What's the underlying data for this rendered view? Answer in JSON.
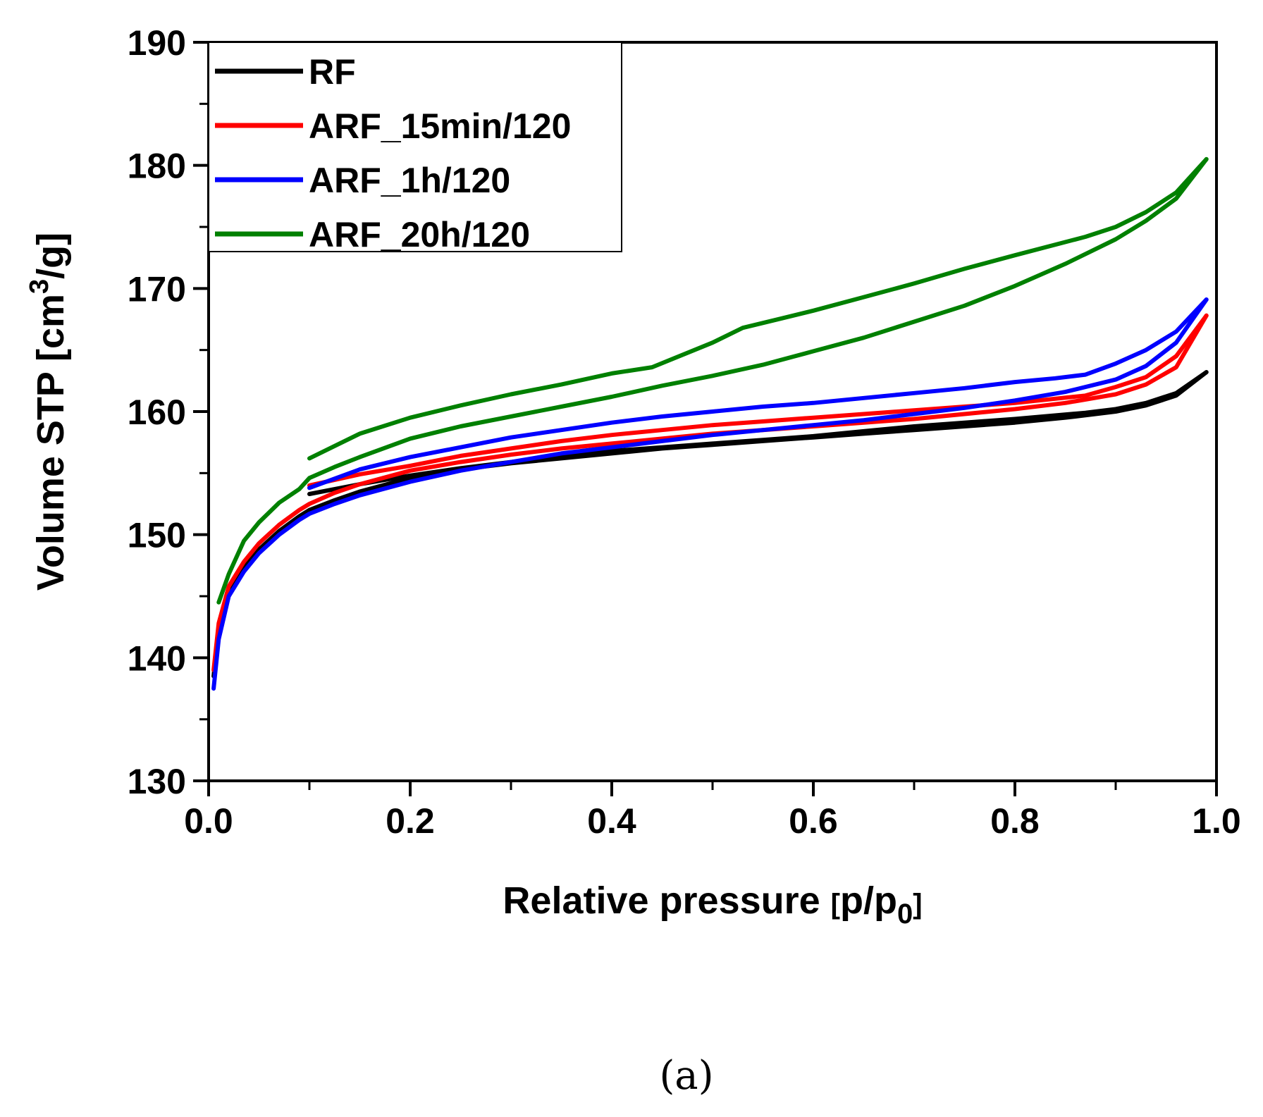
{
  "caption": "(a)",
  "chart_data": {
    "type": "line",
    "xlabel": "Relative pressure [p/p0]",
    "xlabel_parts": {
      "main": "Relative pressure ",
      "bracket_open": "[",
      "p": "p/p",
      "sub": "0",
      "bracket_close": "]"
    },
    "ylabel": "Volume STP [cm3/g]",
    "ylabel_parts": {
      "main": "Volume STP [cm",
      "sup": "3",
      "end": "/g]"
    },
    "xlim": [
      0.0,
      1.0
    ],
    "ylim": [
      130,
      190
    ],
    "xticks": [
      0.0,
      0.2,
      0.4,
      0.6,
      0.8,
      1.0
    ],
    "xtick_labels": [
      "0.0",
      "0.2",
      "0.4",
      "0.6",
      "0.8",
      "1.0"
    ],
    "yticks": [
      130,
      140,
      150,
      160,
      170,
      180,
      190
    ],
    "ytick_labels": [
      "130",
      "140",
      "150",
      "160",
      "170",
      "180",
      "190"
    ],
    "grid": false,
    "legend_position": "top-left",
    "series": [
      {
        "name": "RF",
        "color": "#000000",
        "adsorption": [
          [
            0.005,
            138.5
          ],
          [
            0.01,
            142.5
          ],
          [
            0.02,
            145.5
          ],
          [
            0.035,
            147.3
          ],
          [
            0.05,
            148.8
          ],
          [
            0.07,
            150.3
          ],
          [
            0.09,
            151.5
          ],
          [
            0.1,
            152.0
          ],
          [
            0.125,
            152.8
          ],
          [
            0.15,
            153.5
          ],
          [
            0.2,
            154.6
          ],
          [
            0.25,
            155.3
          ],
          [
            0.3,
            155.8
          ],
          [
            0.35,
            156.2
          ],
          [
            0.4,
            156.6
          ],
          [
            0.45,
            157.0
          ],
          [
            0.5,
            157.3
          ],
          [
            0.55,
            157.6
          ],
          [
            0.6,
            157.9
          ],
          [
            0.65,
            158.2
          ],
          [
            0.7,
            158.5
          ],
          [
            0.75,
            158.8
          ],
          [
            0.8,
            159.1
          ],
          [
            0.85,
            159.5
          ],
          [
            0.9,
            160.0
          ],
          [
            0.93,
            160.5
          ],
          [
            0.96,
            161.3
          ],
          [
            0.99,
            163.2
          ]
        ],
        "desorption": [
          [
            0.99,
            163.2
          ],
          [
            0.96,
            161.5
          ],
          [
            0.93,
            160.7
          ],
          [
            0.9,
            160.2
          ],
          [
            0.87,
            159.9
          ],
          [
            0.8,
            159.4
          ],
          [
            0.75,
            159.1
          ],
          [
            0.7,
            158.8
          ],
          [
            0.65,
            158.4
          ],
          [
            0.6,
            158.0
          ],
          [
            0.55,
            157.7
          ],
          [
            0.5,
            157.4
          ],
          [
            0.45,
            157.1
          ],
          [
            0.4,
            156.8
          ],
          [
            0.35,
            156.4
          ],
          [
            0.3,
            155.9
          ],
          [
            0.25,
            155.4
          ],
          [
            0.2,
            154.8
          ],
          [
            0.15,
            154.1
          ],
          [
            0.1,
            153.3
          ]
        ]
      },
      {
        "name": "ARF_15min/120",
        "color": "#ff0000",
        "adsorption": [
          [
            0.005,
            139.0
          ],
          [
            0.01,
            142.8
          ],
          [
            0.02,
            145.8
          ],
          [
            0.035,
            147.8
          ],
          [
            0.05,
            149.3
          ],
          [
            0.07,
            150.8
          ],
          [
            0.09,
            152.0
          ],
          [
            0.1,
            152.5
          ],
          [
            0.125,
            153.4
          ],
          [
            0.15,
            154.1
          ],
          [
            0.2,
            155.2
          ],
          [
            0.25,
            155.9
          ],
          [
            0.3,
            156.5
          ],
          [
            0.35,
            157.0
          ],
          [
            0.4,
            157.4
          ],
          [
            0.45,
            157.8
          ],
          [
            0.5,
            158.2
          ],
          [
            0.55,
            158.5
          ],
          [
            0.6,
            158.8
          ],
          [
            0.65,
            159.1
          ],
          [
            0.7,
            159.4
          ],
          [
            0.75,
            159.8
          ],
          [
            0.8,
            160.2
          ],
          [
            0.85,
            160.7
          ],
          [
            0.9,
            161.4
          ],
          [
            0.93,
            162.2
          ],
          [
            0.96,
            163.6
          ],
          [
            0.99,
            167.8
          ]
        ],
        "desorption": [
          [
            0.99,
            167.8
          ],
          [
            0.96,
            164.5
          ],
          [
            0.93,
            162.8
          ],
          [
            0.9,
            162.0
          ],
          [
            0.87,
            161.3
          ],
          [
            0.8,
            160.7
          ],
          [
            0.75,
            160.4
          ],
          [
            0.7,
            160.1
          ],
          [
            0.65,
            159.8
          ],
          [
            0.6,
            159.5
          ],
          [
            0.55,
            159.2
          ],
          [
            0.5,
            158.9
          ],
          [
            0.45,
            158.5
          ],
          [
            0.4,
            158.1
          ],
          [
            0.35,
            157.6
          ],
          [
            0.3,
            157.0
          ],
          [
            0.25,
            156.4
          ],
          [
            0.2,
            155.6
          ],
          [
            0.15,
            154.9
          ],
          [
            0.1,
            154.0
          ]
        ]
      },
      {
        "name": "ARF_1h/120",
        "color": "#0000ff",
        "adsorption": [
          [
            0.005,
            137.5
          ],
          [
            0.01,
            141.5
          ],
          [
            0.02,
            145.0
          ],
          [
            0.035,
            147.0
          ],
          [
            0.05,
            148.5
          ],
          [
            0.07,
            150.0
          ],
          [
            0.09,
            151.2
          ],
          [
            0.1,
            151.7
          ],
          [
            0.125,
            152.5
          ],
          [
            0.15,
            153.2
          ],
          [
            0.2,
            154.3
          ],
          [
            0.25,
            155.2
          ],
          [
            0.3,
            155.9
          ],
          [
            0.35,
            156.6
          ],
          [
            0.4,
            157.1
          ],
          [
            0.45,
            157.6
          ],
          [
            0.5,
            158.1
          ],
          [
            0.55,
            158.5
          ],
          [
            0.6,
            158.9
          ],
          [
            0.65,
            159.3
          ],
          [
            0.7,
            159.8
          ],
          [
            0.75,
            160.3
          ],
          [
            0.8,
            160.9
          ],
          [
            0.85,
            161.6
          ],
          [
            0.9,
            162.6
          ],
          [
            0.93,
            163.7
          ],
          [
            0.96,
            165.6
          ],
          [
            0.99,
            169.1
          ]
        ],
        "desorption": [
          [
            0.99,
            169.1
          ],
          [
            0.96,
            166.5
          ],
          [
            0.93,
            165.0
          ],
          [
            0.9,
            163.9
          ],
          [
            0.87,
            163.0
          ],
          [
            0.84,
            162.7
          ],
          [
            0.8,
            162.4
          ],
          [
            0.75,
            161.9
          ],
          [
            0.7,
            161.5
          ],
          [
            0.65,
            161.1
          ],
          [
            0.6,
            160.7
          ],
          [
            0.55,
            160.4
          ],
          [
            0.5,
            160.0
          ],
          [
            0.45,
            159.6
          ],
          [
            0.4,
            159.1
          ],
          [
            0.35,
            158.5
          ],
          [
            0.3,
            157.9
          ],
          [
            0.25,
            157.1
          ],
          [
            0.2,
            156.3
          ],
          [
            0.15,
            155.3
          ],
          [
            0.1,
            153.8
          ]
        ]
      },
      {
        "name": "ARF_20h/120",
        "color": "#008000",
        "adsorption": [
          [
            0.01,
            144.5
          ],
          [
            0.02,
            146.8
          ],
          [
            0.035,
            149.5
          ],
          [
            0.05,
            151.0
          ],
          [
            0.07,
            152.6
          ],
          [
            0.09,
            153.7
          ],
          [
            0.1,
            154.6
          ],
          [
            0.125,
            155.5
          ],
          [
            0.15,
            156.3
          ],
          [
            0.2,
            157.8
          ],
          [
            0.25,
            158.8
          ],
          [
            0.3,
            159.6
          ],
          [
            0.35,
            160.4
          ],
          [
            0.4,
            161.2
          ],
          [
            0.45,
            162.1
          ],
          [
            0.5,
            162.9
          ],
          [
            0.55,
            163.8
          ],
          [
            0.6,
            164.9
          ],
          [
            0.65,
            166.0
          ],
          [
            0.7,
            167.3
          ],
          [
            0.75,
            168.6
          ],
          [
            0.8,
            170.2
          ],
          [
            0.85,
            172.0
          ],
          [
            0.9,
            174.0
          ],
          [
            0.93,
            175.5
          ],
          [
            0.96,
            177.3
          ],
          [
            0.99,
            180.5
          ]
        ],
        "desorption": [
          [
            0.99,
            180.5
          ],
          [
            0.96,
            177.8
          ],
          [
            0.93,
            176.2
          ],
          [
            0.9,
            175.0
          ],
          [
            0.87,
            174.2
          ],
          [
            0.8,
            172.7
          ],
          [
            0.75,
            171.6
          ],
          [
            0.7,
            170.4
          ],
          [
            0.65,
            169.3
          ],
          [
            0.6,
            168.2
          ],
          [
            0.57,
            167.6
          ],
          [
            0.53,
            166.8
          ],
          [
            0.5,
            165.6
          ],
          [
            0.44,
            163.6
          ],
          [
            0.4,
            163.1
          ],
          [
            0.35,
            162.2
          ],
          [
            0.3,
            161.4
          ],
          [
            0.25,
            160.5
          ],
          [
            0.2,
            159.5
          ],
          [
            0.15,
            158.2
          ],
          [
            0.1,
            156.2
          ]
        ]
      }
    ]
  }
}
